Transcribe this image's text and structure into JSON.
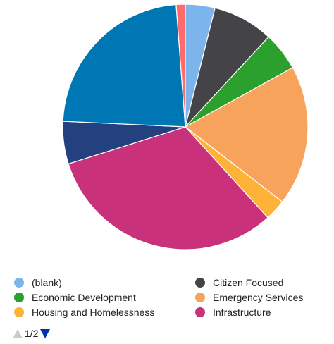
{
  "chart_data": {
    "type": "pie",
    "slices": [
      {
        "label": "(blank)",
        "value": 3.9,
        "color": "#7cb5ec"
      },
      {
        "label": "Citizen Focused",
        "value": 8.0,
        "color": "#434348"
      },
      {
        "label": "Economic Development",
        "value": 5.1,
        "color": "#2ca02c"
      },
      {
        "label": "Emergency Services",
        "value": 18.5,
        "color": "#f7a35c"
      },
      {
        "label": "Housing and Homelessness",
        "value": 2.8,
        "color": "#ffb238"
      },
      {
        "label": "Infrastructure",
        "value": 31.9,
        "color": "#c9317a"
      },
      {
        "label": "",
        "value": 5.6,
        "color": "#23417e"
      },
      {
        "label": "",
        "value": 23.1,
        "color": "#0077b5"
      },
      {
        "label": "",
        "value": 1.2,
        "color": "#ff6b6b"
      }
    ],
    "legend_placement": "bottom",
    "legend_visible_count": 6
  },
  "pager": {
    "text": "1/2",
    "prev_color": "#cccccc",
    "next_color": "#0033aa"
  }
}
